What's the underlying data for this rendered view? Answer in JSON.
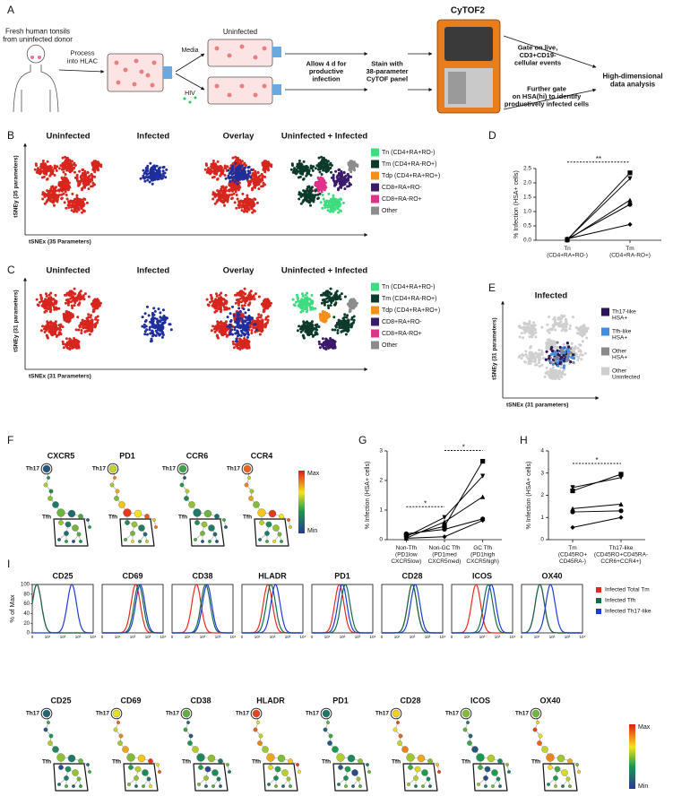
{
  "panel_labels": [
    "A",
    "B",
    "C",
    "D",
    "E",
    "F",
    "G",
    "H",
    "I"
  ],
  "workflow": {
    "tonsil": "Fresh human tonsils\nfrom uninfected donor",
    "process": "Process\ninto HLAC",
    "media": "Media",
    "hiv": "HIV",
    "uninfected": "Uninfected",
    "allow": "Allow 4 d for\nproductive\ninfection",
    "stain": "Stain with\n38-parameter\nCyTOF panel",
    "instrument": "CyTOF2",
    "gate": "Gate on live,\nCD3+CD19-\ncellular events",
    "further": "Further gate\non HSA(hi) to identify\nproductively infected cells",
    "analysis": "High-dimensional\ndata analysis"
  },
  "tsne": [
    {
      "series": [
        {
          "name": "Uninfected",
          "color": "#d7261e"
        },
        {
          "name": "Infected",
          "color": "#1f2e9c"
        }
      ],
      "overlay": "Overlay",
      "combined": "Uninfected + Infected",
      "axis_y": "tSNEy (35 parameters)",
      "axis_x": "tSNEx (35 Parameters)",
      "legend": [
        {
          "name": "Tn (CD4+RA+RO-)",
          "color": "#3ddc7e"
        },
        {
          "name": "Tm (CD4+RA-RO+)",
          "color": "#0c3a2b"
        },
        {
          "name": "Tdp (CD4+RA+RO+)",
          "color": "#f39019"
        },
        {
          "name": "CD8+RA+RO-",
          "color": "#3b1a6b"
        },
        {
          "name": "CD8+RA-RO+",
          "color": "#e0318b"
        },
        {
          "name": "Other",
          "color": "#8c8c8c"
        }
      ]
    },
    {
      "series": [
        {
          "name": "Uninfected",
          "color": "#d7261e"
        },
        {
          "name": "Infected",
          "color": "#1f2e9c"
        }
      ],
      "overlay": "Overlay",
      "combined": "Uninfected + Infected",
      "axis_y": "tSNEy (31 parameters)",
      "axis_x": "tSNEx (31 Parameters)",
      "legend": [
        {
          "name": "Tn (CD4+RA+RO-)",
          "color": "#3ddc7e"
        },
        {
          "name": "Tm (CD4+RA-RO+)",
          "color": "#0c3a2b"
        },
        {
          "name": "Tdp (CD4+RA+RO+)",
          "color": "#f39019"
        },
        {
          "name": "CD8+RA+RO-",
          "color": "#3b1a6b"
        },
        {
          "name": "CD8+RA-RO+",
          "color": "#e0318b"
        },
        {
          "name": "Other",
          "color": "#8c8c8c"
        }
      ]
    }
  ],
  "infected_map": {
    "title": "Infected",
    "axis_y": "tSNEy (31 parameters)",
    "axis_x": "tSNEx (31 parameters)",
    "legend": [
      {
        "name": "Th17-like\nHSA+",
        "color": "#2d1657"
      },
      {
        "name": "Tfh-like\nHSA+",
        "color": "#3f8fe0"
      },
      {
        "name": "Other\nHSA+",
        "color": "#8a8a8a"
      },
      {
        "name": "Other\nUninfected",
        "color": "#cfcfcf"
      }
    ]
  },
  "trees": {
    "th17": "Th17",
    "tfh": "Tfh",
    "max": "Max",
    "min": "Min",
    "top": [
      "CXCR5",
      "PD1",
      "CCR6",
      "CCR4"
    ],
    "bottom": [
      "CD25",
      "CD69",
      "CD38",
      "HLADR",
      "PD1",
      "CD28",
      "ICOS",
      "OX40"
    ]
  },
  "histograms": {
    "y_label": "% of Max",
    "yticks": [
      0,
      20,
      40,
      60,
      80,
      100
    ],
    "x_tick_labels": [
      "0",
      "10¹",
      "10²",
      "10³",
      "10⁴"
    ],
    "legend": [
      {
        "name": "Infected Total Tm",
        "color": "#e8271e"
      },
      {
        "name": "Infected Tfh",
        "color": "#136b4a"
      },
      {
        "name": "Infected Th17-like",
        "color": "#1d3ad6"
      }
    ],
    "panels": [
      {
        "marker": "CD25",
        "peaks": [
          0.3,
          0.3,
          2.6
        ]
      },
      {
        "marker": "CD69",
        "peaks": [
          2.2,
          2.4,
          2.5
        ]
      },
      {
        "marker": "CD38",
        "peaks": [
          1.6,
          2.2,
          2.3
        ]
      },
      {
        "marker": "HLADR",
        "peaks": [
          1.7,
          1.9,
          2.2
        ]
      },
      {
        "marker": "PD1",
        "peaks": [
          1.8,
          2.2,
          2.0
        ]
      },
      {
        "marker": "CD28",
        "peaks": [
          2.0,
          2.0,
          2.2
        ]
      },
      {
        "marker": "ICOS",
        "peaks": [
          1.6,
          2.4,
          2.6
        ]
      },
      {
        "marker": "OX40",
        "peaks": [
          1.2,
          1.2,
          1.9
        ]
      }
    ]
  },
  "chart_data": [
    {
      "type": "line",
      "y_label": "% Infection (HSA+ cells)",
      "color": "#000000",
      "categories": [
        "Tn\n(CD4+RA+RO-)",
        "Tm\n(CD4+RA-RO+)"
      ],
      "series": [
        {
          "values": [
            0.02,
            2.35
          ]
        },
        {
          "values": [
            0.03,
            2.15
          ]
        },
        {
          "values": [
            0.01,
            1.4
          ]
        },
        {
          "values": [
            0.04,
            1.25
          ]
        },
        {
          "values": [
            0.05,
            0.55
          ]
        }
      ],
      "ylim": [
        0,
        2.5
      ],
      "yticks": [
        {
          "value": 0,
          "label": "0.0"
        },
        0.5,
        {
          "value": 1,
          "label": "1.0"
        },
        1.5,
        {
          "value": 2,
          "label": "2.0"
        },
        2.5
      ],
      "annotations": [
        "**"
      ]
    },
    {
      "type": "line",
      "y_label": "% Infection (HSA+ cells)",
      "color": "#000000",
      "categories": [
        "Non-Tfh\n(PD1low\nCXCR5low)",
        "Non-GC Tfh\n(PD1med\nCXCR5med)",
        "GC Tfh\n(PD1high\nCXCR5high)"
      ],
      "series": [
        {
          "values": [
            0.15,
            0.45,
            2.65
          ]
        },
        {
          "values": [
            0.1,
            0.75,
            2.15
          ]
        },
        {
          "values": [
            0.05,
            0.6,
            1.45
          ]
        },
        {
          "values": [
            0.2,
            0.35,
            0.7
          ]
        },
        {
          "values": [
            0.05,
            0.1,
            0.65
          ]
        }
      ],
      "ylim": [
        0,
        3
      ],
      "yticks": [
        0,
        1,
        2,
        3
      ],
      "annotations": [
        "*",
        "*"
      ]
    },
    {
      "type": "line",
      "y_label": "% Infection (HSA+ cells)",
      "color": "#000000",
      "categories": [
        "Tm\n(CD45RO+\nCD45RA-)",
        "Th17-like\n(CD45RO+CD45RA-\nCCR6+CCR4+)"
      ],
      "series": [
        {
          "values": [
            2.2,
            2.95
          ]
        },
        {
          "values": [
            2.35,
            2.8
          ]
        },
        {
          "values": [
            1.4,
            1.6
          ]
        },
        {
          "values": [
            1.25,
            1.3
          ]
        },
        {
          "values": [
            0.55,
            1.0
          ]
        }
      ],
      "ylim": [
        0,
        4
      ],
      "yticks": [
        0,
        1,
        2,
        3,
        4
      ],
      "annotations": [
        "*"
      ]
    }
  ]
}
